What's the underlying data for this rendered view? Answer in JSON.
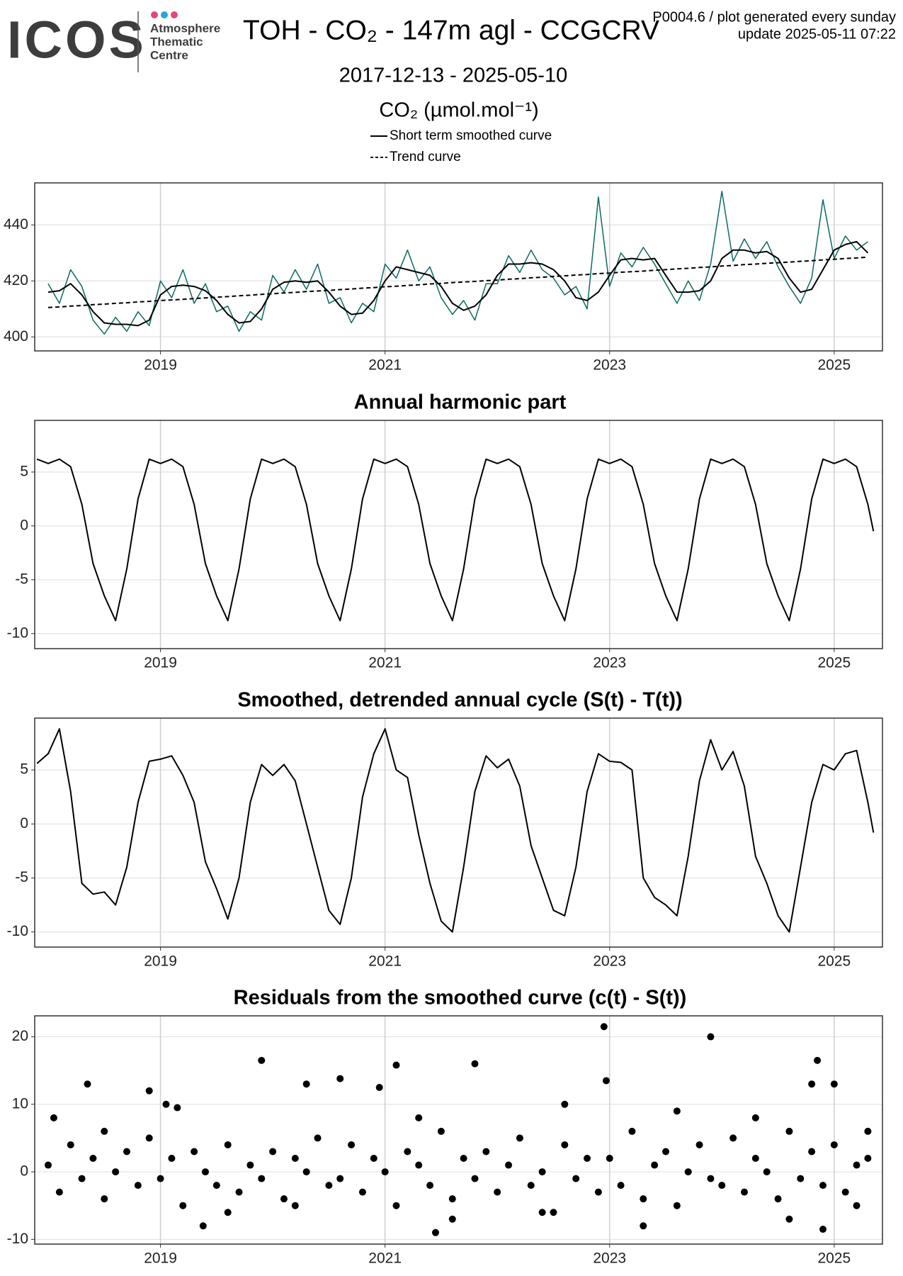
{
  "header": {
    "logo": "ICOS",
    "logo_subtitle": [
      "Atmosphere",
      "Thematic",
      "Centre"
    ],
    "title": "TOH - CO₂ - 147m agl - CCGCRV",
    "subtitle": "2017-12-13 - 2025-05-10",
    "version": "P0004.6 / plot generated every sunday",
    "update": "update  2025-05-11 07:22"
  },
  "chart_data": [
    {
      "type": "line",
      "y_label": "CO₂ (µmol.mol⁻¹)",
      "x": [
        2018.0,
        2018.1,
        2018.2,
        2018.3,
        2018.4,
        2018.5,
        2018.6,
        2018.7,
        2018.8,
        2018.9,
        2019.0,
        2019.1,
        2019.2,
        2019.3,
        2019.4,
        2019.5,
        2019.6,
        2019.7,
        2019.8,
        2019.9,
        2020.0,
        2020.1,
        2020.2,
        2020.3,
        2020.4,
        2020.5,
        2020.6,
        2020.7,
        2020.8,
        2020.9,
        2021.0,
        2021.1,
        2021.2,
        2021.3,
        2021.4,
        2021.5,
        2021.6,
        2021.7,
        2021.8,
        2021.9,
        2022.0,
        2022.1,
        2022.2,
        2022.3,
        2022.4,
        2022.5,
        2022.6,
        2022.7,
        2022.8,
        2022.9,
        2023.0,
        2023.1,
        2023.2,
        2023.3,
        2023.4,
        2023.5,
        2023.6,
        2023.7,
        2023.8,
        2023.9,
        2024.0,
        2024.1,
        2024.2,
        2024.3,
        2024.4,
        2024.5,
        2024.6,
        2024.7,
        2024.8,
        2024.9,
        2025.0,
        2025.1,
        2025.2,
        2025.3
      ],
      "series": [
        {
          "color": "#0b6b61",
          "style": "solid",
          "width": 1.5,
          "values": [
            419,
            412,
            424,
            418,
            406,
            401,
            407,
            402,
            409,
            404,
            420,
            414,
            424,
            412,
            419,
            409,
            411,
            402,
            409,
            406,
            422,
            416,
            424,
            417,
            426,
            412,
            414,
            405,
            412,
            409,
            426,
            421,
            431,
            420,
            425,
            414,
            408,
            413,
            406,
            419,
            419,
            429,
            423,
            431,
            424,
            421,
            415,
            418,
            410,
            450,
            418,
            430,
            425,
            432,
            426,
            419,
            412,
            420,
            413,
            426,
            452,
            427,
            435,
            428,
            434,
            425,
            418,
            412,
            421,
            449,
            428,
            436,
            431,
            434
          ]
        },
        {
          "name": "Short term smoothed curve",
          "color": "#000000",
          "style": "solid",
          "width": 2,
          "values": [
            416,
            416.5,
            419,
            415,
            409,
            405,
            404.5,
            404.5,
            404,
            406,
            415,
            418,
            418.5,
            418,
            416.5,
            413,
            408,
            405,
            405.5,
            410,
            417,
            419.5,
            420,
            419.5,
            420,
            416,
            411,
            408,
            408.5,
            413,
            420,
            425,
            424,
            423,
            422,
            418,
            412,
            409.5,
            411,
            415,
            422,
            426,
            426,
            426.5,
            426,
            424,
            420,
            414,
            413,
            416,
            422,
            427.5,
            428,
            427.5,
            428,
            422,
            416,
            416,
            416.5,
            420,
            428,
            431,
            431,
            430,
            430.5,
            428,
            421,
            416,
            417,
            424,
            431,
            433,
            434,
            430
          ]
        },
        {
          "name": "Trend curve",
          "color": "#000000",
          "style": "dashed",
          "width": 2,
          "values": [
            410.5,
            410.7,
            411.0,
            411.2,
            411.5,
            411.7,
            412.0,
            412.2,
            412.5,
            412.7,
            413.0,
            413.2,
            413.4,
            413.7,
            413.9,
            414.2,
            414.4,
            414.7,
            414.9,
            415.2,
            415.4,
            415.7,
            415.9,
            416.2,
            416.4,
            416.6,
            416.9,
            417.1,
            417.4,
            417.6,
            417.9,
            418.1,
            418.4,
            418.6,
            418.9,
            419.1,
            419.4,
            419.6,
            419.8,
            420.1,
            420.3,
            420.6,
            420.8,
            421.1,
            421.3,
            421.6,
            421.8,
            422.1,
            422.3,
            422.6,
            422.8,
            423.1,
            423.3,
            423.5,
            423.8,
            424.0,
            424.3,
            424.5,
            424.8,
            425.0,
            425.3,
            425.5,
            425.8,
            426.0,
            426.3,
            426.5,
            426.7,
            427.0,
            427.2,
            427.5,
            427.7,
            428.0,
            428.2,
            428.5
          ]
        }
      ],
      "xlim": [
        2017.88,
        2025.43
      ],
      "xticks": [
        2019,
        2021,
        2023,
        2025
      ],
      "ylim": [
        395,
        455
      ],
      "yticks": [
        400,
        420,
        440
      ],
      "grid": true,
      "legend": "top"
    },
    {
      "type": "line",
      "title": "Annual harmonic part",
      "color": "#000000",
      "x": [
        2017.9,
        2018.0,
        2018.1,
        2018.2,
        2018.3,
        2018.4,
        2018.5,
        2018.6,
        2018.7,
        2018.8,
        2018.9,
        2019.0,
        2019.1,
        2019.2,
        2019.3,
        2019.4,
        2019.5,
        2019.6,
        2019.7,
        2019.8,
        2019.9,
        2020.0,
        2020.1,
        2020.2,
        2020.3,
        2020.4,
        2020.5,
        2020.6,
        2020.7,
        2020.8,
        2020.9,
        2021.0,
        2021.1,
        2021.2,
        2021.3,
        2021.4,
        2021.5,
        2021.6,
        2021.7,
        2021.8,
        2021.9,
        2022.0,
        2022.1,
        2022.2,
        2022.3,
        2022.4,
        2022.5,
        2022.6,
        2022.7,
        2022.8,
        2022.9,
        2023.0,
        2023.1,
        2023.2,
        2023.3,
        2023.4,
        2023.5,
        2023.6,
        2023.7,
        2023.8,
        2023.9,
        2024.0,
        2024.1,
        2024.2,
        2024.3,
        2024.4,
        2024.5,
        2024.6,
        2024.7,
        2024.8,
        2024.9,
        2025.0,
        2025.1,
        2025.2,
        2025.3,
        2025.35
      ],
      "values": [
        6.2,
        5.8,
        6.2,
        5.5,
        2,
        -3.5,
        -6.5,
        -8.8,
        -4,
        2.5,
        6.2,
        5.8,
        6.2,
        5.5,
        2,
        -3.5,
        -6.5,
        -8.8,
        -4,
        2.5,
        6.2,
        5.8,
        6.2,
        5.5,
        2,
        -3.5,
        -6.5,
        -8.8,
        -4,
        2.5,
        6.2,
        5.8,
        6.2,
        5.5,
        2,
        -3.5,
        -6.5,
        -8.8,
        -4,
        2.5,
        6.2,
        5.8,
        6.2,
        5.5,
        2,
        -3.5,
        -6.5,
        -8.8,
        -4,
        2.5,
        6.2,
        5.8,
        6.2,
        5.5,
        2,
        -3.5,
        -6.5,
        -8.8,
        -4,
        2.5,
        6.2,
        5.8,
        6.2,
        5.5,
        2,
        -3.5,
        -6.5,
        -8.8,
        -4,
        2.5,
        6.2,
        5.8,
        6.2,
        5.5,
        2,
        -0.5
      ],
      "xlim": [
        2017.88,
        2025.43
      ],
      "xticks": [
        2019,
        2021,
        2023,
        2025
      ],
      "ylim": [
        -11.4,
        9.8
      ],
      "yticks": [
        -10,
        -5,
        0,
        5
      ],
      "grid": true
    },
    {
      "type": "line",
      "title": "Smoothed, detrended annual cycle (S(t) - T(t))",
      "color": "#000000",
      "x": [
        2017.9,
        2018.0,
        2018.1,
        2018.2,
        2018.3,
        2018.4,
        2018.5,
        2018.6,
        2018.7,
        2018.8,
        2018.9,
        2019.0,
        2019.1,
        2019.2,
        2019.3,
        2019.4,
        2019.5,
        2019.6,
        2019.7,
        2019.8,
        2019.9,
        2020.0,
        2020.1,
        2020.2,
        2020.3,
        2020.4,
        2020.5,
        2020.6,
        2020.7,
        2020.8,
        2020.9,
        2021.0,
        2021.1,
        2021.2,
        2021.3,
        2021.4,
        2021.5,
        2021.6,
        2021.7,
        2021.8,
        2021.9,
        2022.0,
        2022.1,
        2022.2,
        2022.3,
        2022.4,
        2022.5,
        2022.6,
        2022.7,
        2022.8,
        2022.9,
        2023.0,
        2023.1,
        2023.2,
        2023.3,
        2023.4,
        2023.5,
        2023.6,
        2023.7,
        2023.8,
        2023.9,
        2024.0,
        2024.1,
        2024.2,
        2024.3,
        2024.4,
        2024.5,
        2024.6,
        2024.7,
        2024.8,
        2024.9,
        2025.0,
        2025.1,
        2025.2,
        2025.3,
        2025.35
      ],
      "values": [
        5.6,
        6.5,
        8.8,
        3,
        -5.5,
        -6.5,
        -6.3,
        -7.5,
        -4,
        2,
        5.8,
        6,
        6.3,
        4.5,
        2,
        -3.5,
        -6,
        -8.8,
        -5,
        2,
        5.5,
        4.5,
        5.5,
        4,
        0,
        -4,
        -8,
        -9.3,
        -5,
        2.5,
        6.5,
        8.8,
        5,
        4.3,
        -1,
        -5.5,
        -9,
        -10,
        -4,
        3,
        6.3,
        5.2,
        6,
        3.5,
        -2,
        -5,
        -8,
        -8.5,
        -4,
        3,
        6.5,
        5.8,
        5.7,
        5,
        -5,
        -6.8,
        -7.5,
        -8.5,
        -3,
        4,
        7.8,
        5,
        6.7,
        3.5,
        -3,
        -5.5,
        -8.5,
        -10,
        -4,
        2,
        5.5,
        5,
        6.5,
        6.8,
        2,
        -0.8
      ],
      "xlim": [
        2017.88,
        2025.43
      ],
      "xticks": [
        2019,
        2021,
        2023,
        2025
      ],
      "ylim": [
        -11.4,
        9.8
      ],
      "yticks": [
        -10,
        -5,
        0,
        5
      ],
      "grid": true
    },
    {
      "type": "scatter",
      "title": "Residuals from the smoothed curve (c(t) - S(t))",
      "color": "#000000",
      "x": [
        2018.0,
        2018.1,
        2018.2,
        2018.3,
        2018.4,
        2018.5,
        2018.6,
        2018.7,
        2018.8,
        2018.9,
        2019.0,
        2019.1,
        2019.2,
        2019.3,
        2019.4,
        2019.5,
        2019.6,
        2019.7,
        2019.8,
        2019.9,
        2020.0,
        2020.1,
        2020.2,
        2020.3,
        2020.4,
        2020.5,
        2020.6,
        2020.7,
        2020.8,
        2020.9,
        2021.0,
        2021.1,
        2021.2,
        2021.3,
        2021.4,
        2021.5,
        2021.6,
        2021.7,
        2021.8,
        2021.9,
        2022.0,
        2022.1,
        2022.2,
        2022.3,
        2022.4,
        2022.5,
        2022.6,
        2022.7,
        2022.8,
        2022.9,
        2023.0,
        2023.1,
        2023.2,
        2023.3,
        2023.4,
        2023.5,
        2023.6,
        2023.7,
        2023.8,
        2023.9,
        2024.0,
        2024.1,
        2024.2,
        2024.3,
        2024.4,
        2024.5,
        2024.6,
        2024.7,
        2024.8,
        2024.9,
        2025.0,
        2025.1,
        2025.2,
        2025.3,
        2018.35,
        2018.9,
        2019.05,
        2019.15,
        2019.38,
        2019.9,
        2020.3,
        2020.6,
        2020.95,
        2021.1,
        2021.8,
        2022.95,
        2022.97,
        2023.9,
        2024.85,
        2024.8,
        2025.0,
        2021.45,
        2023.3,
        2024.9,
        2018.05,
        2018.5,
        2019.6,
        2020.2,
        2021.3,
        2021.6,
        2022.4,
        2022.6,
        2023.6,
        2024.3,
        2024.6,
        2025.2,
        2025.3
      ],
      "values": [
        1,
        -3,
        4,
        -1,
        2,
        -4,
        0,
        3,
        -2,
        5,
        -1,
        2,
        -5,
        3,
        0,
        -2,
        4,
        -3,
        1,
        -1,
        3,
        -4,
        2,
        0,
        5,
        -2,
        -1,
        4,
        -3,
        2,
        0,
        -5,
        3,
        1,
        -2,
        6,
        -4,
        2,
        -1,
        3,
        -3,
        1,
        5,
        -2,
        0,
        -6,
        4,
        -1,
        2,
        -3,
        2,
        -2,
        6,
        -4,
        1,
        3,
        -5,
        0,
        4,
        -1,
        -2,
        5,
        -3,
        2,
        0,
        -4,
        6,
        -1,
        3,
        -2,
        4,
        -3,
        1,
        2,
        13,
        12,
        10,
        9.5,
        -8,
        16.5,
        13,
        13.8,
        12.5,
        15.8,
        16,
        21.5,
        13.5,
        20,
        16.5,
        13,
        13,
        -9,
        -8,
        -8.5,
        8,
        6,
        -6,
        -5,
        8,
        -7,
        -6,
        10,
        9,
        8,
        -7,
        -5,
        6
      ],
      "xlim": [
        2017.88,
        2025.43
      ],
      "xticks": [
        2019,
        2021,
        2023,
        2025
      ],
      "ylim": [
        -10.7,
        23.1
      ],
      "yticks": [
        -10,
        0,
        10,
        20
      ],
      "grid": true
    }
  ]
}
